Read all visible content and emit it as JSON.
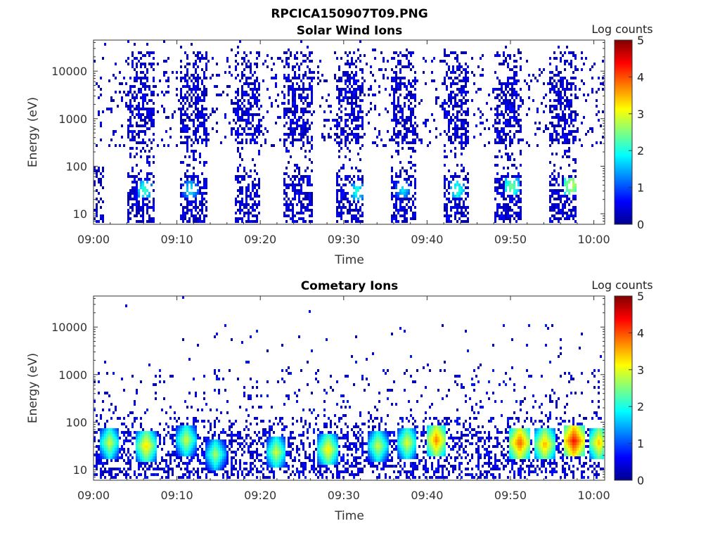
{
  "figure": {
    "title": "RPCICA150907T09.PNG"
  },
  "chart_data": [
    {
      "type": "heatmap",
      "title": "Solar Wind Ions",
      "xlabel": "Time",
      "ylabel": "Energy (eV)",
      "x_ticks": [
        "09:00",
        "09:10",
        "09:20",
        "09:30",
        "09:40",
        "09:50",
        "10:00"
      ],
      "x_range_minutes": [
        0,
        61.3
      ],
      "y_scale": "log",
      "y_ticks": [
        "10",
        "100",
        "1000",
        "10000"
      ],
      "y_range_eV": [
        6,
        45000
      ],
      "colorbar": {
        "label": "Log counts",
        "ticks": [
          "0",
          "1",
          "2",
          "3",
          "4",
          "5"
        ],
        "range": [
          0,
          5
        ],
        "colormap": "jet"
      },
      "sweep_bands_minutes": [
        [
          4.0,
          7.2
        ],
        [
          10.3,
          13.5
        ],
        [
          16.7,
          19.8
        ],
        [
          22.7,
          26.2
        ],
        [
          29.0,
          32.3
        ],
        [
          35.5,
          38.7
        ],
        [
          41.8,
          45.0
        ],
        [
          48.0,
          51.3
        ],
        [
          54.5,
          57.8
        ]
      ],
      "low_energy_peaks": [
        {
          "time_min": 6.0,
          "energy_eV": 30,
          "log_counts": 2.3
        },
        {
          "time_min": 11.5,
          "energy_eV": 30,
          "log_counts": 2.0
        },
        {
          "time_min": 31.5,
          "energy_eV": 28,
          "log_counts": 2.2
        },
        {
          "time_min": 37.0,
          "energy_eV": 30,
          "log_counts": 1.9
        },
        {
          "time_min": 43.5,
          "energy_eV": 30,
          "log_counts": 2.3
        },
        {
          "time_min": 50.0,
          "energy_eV": 35,
          "log_counts": 2.6
        },
        {
          "time_min": 57.2,
          "energy_eV": 38,
          "log_counts": 3.0
        }
      ]
    },
    {
      "type": "heatmap",
      "title": "Cometary Ions",
      "xlabel": "Time",
      "ylabel": "Energy (eV)",
      "x_ticks": [
        "09:00",
        "09:10",
        "09:20",
        "09:30",
        "09:40",
        "09:50",
        "10:00"
      ],
      "x_range_minutes": [
        0,
        61.3
      ],
      "y_scale": "log",
      "y_ticks": [
        "10",
        "100",
        "1000",
        "10000"
      ],
      "y_range_eV": [
        6,
        45000
      ],
      "colorbar": {
        "label": "Log counts",
        "ticks": [
          "0",
          "1",
          "2",
          "3",
          "4",
          "5"
        ],
        "range": [
          0,
          5
        ],
        "colormap": "jet"
      },
      "hot_spots": [
        {
          "time_min": 1.8,
          "energy_eV": 35,
          "log_counts": 3.0
        },
        {
          "time_min": 6.2,
          "energy_eV": 30,
          "log_counts": 3.4
        },
        {
          "time_min": 11.0,
          "energy_eV": 40,
          "log_counts": 3.0
        },
        {
          "time_min": 14.5,
          "energy_eV": 20,
          "log_counts": 2.8
        },
        {
          "time_min": 21.8,
          "energy_eV": 22,
          "log_counts": 3.0
        },
        {
          "time_min": 28.0,
          "energy_eV": 25,
          "log_counts": 3.3
        },
        {
          "time_min": 34.0,
          "energy_eV": 30,
          "log_counts": 3.0
        },
        {
          "time_min": 37.5,
          "energy_eV": 35,
          "log_counts": 3.1
        },
        {
          "time_min": 41.0,
          "energy_eV": 40,
          "log_counts": 3.8
        },
        {
          "time_min": 51.0,
          "energy_eV": 35,
          "log_counts": 4.0
        },
        {
          "time_min": 54.0,
          "energy_eV": 32,
          "log_counts": 3.6
        },
        {
          "time_min": 57.5,
          "energy_eV": 38,
          "log_counts": 4.4
        },
        {
          "time_min": 60.5,
          "energy_eV": 35,
          "log_counts": 3.5
        }
      ]
    }
  ]
}
